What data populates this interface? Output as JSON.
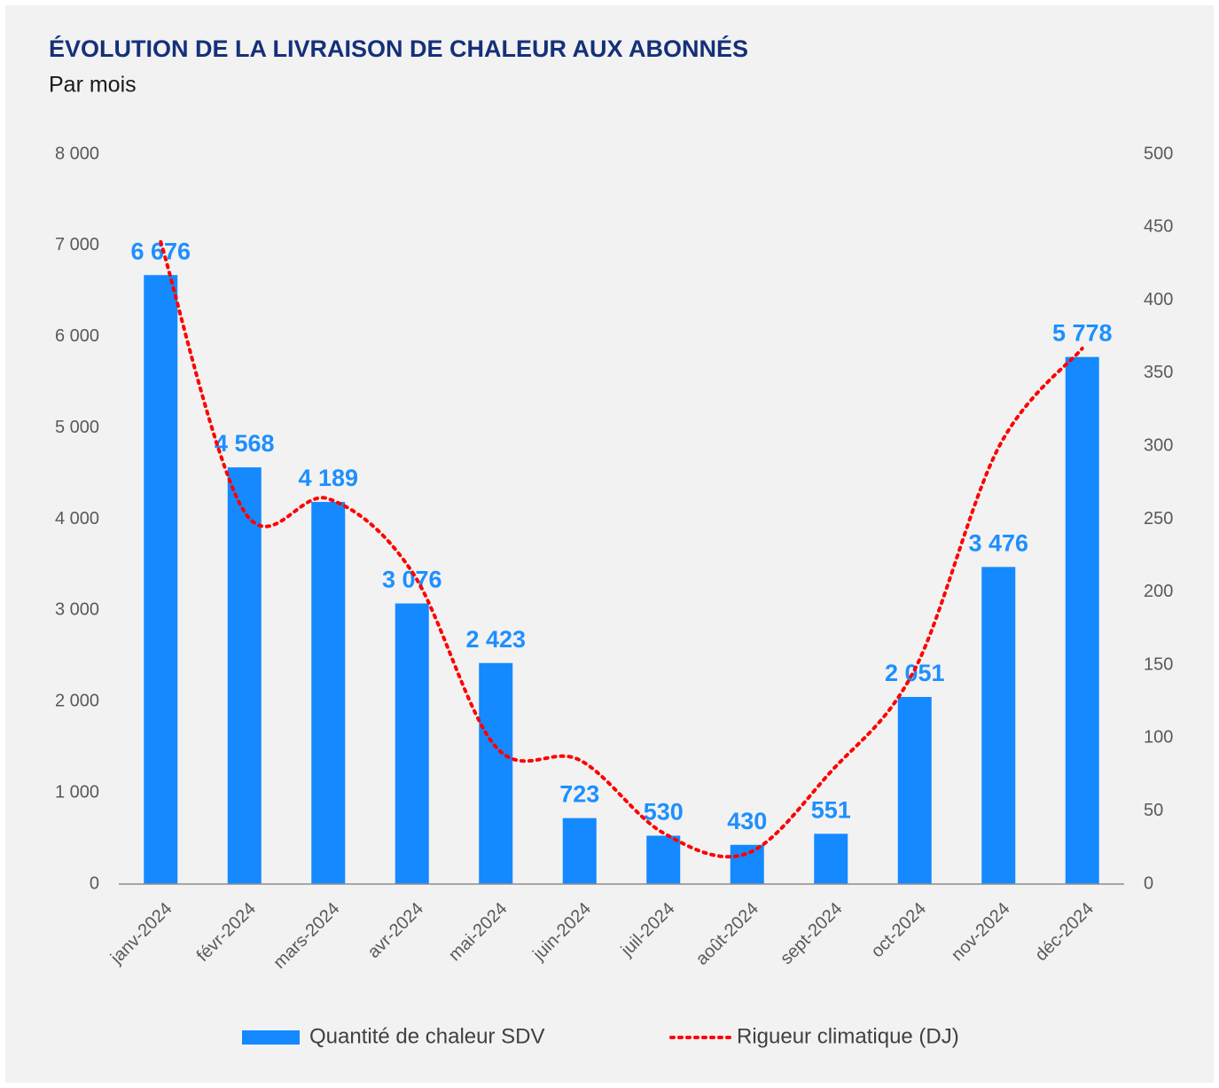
{
  "chart_data": {
    "type": "bar",
    "title": "ÉVOLUTION DE LA LIVRAISON DE CHALEUR AUX ABONNÉS",
    "subtitle": "Par mois",
    "categories": [
      "janv-2024",
      "févr-2024",
      "mars-2024",
      "avr-2024",
      "mai-2024",
      "juin-2024",
      "juil-2024",
      "août-2024",
      "sept-2024",
      "oct-2024",
      "nov-2024",
      "déc-2024"
    ],
    "series": [
      {
        "name": "Quantité de chaleur SDV",
        "type": "bar",
        "color": "#1589ff",
        "values": [
          6676,
          4568,
          4189,
          3076,
          2423,
          723,
          530,
          430,
          551,
          2051,
          3476,
          5778
        ],
        "value_labels": [
          "6 676",
          "4 568",
          "4 189",
          "3 076",
          "2 423",
          "723",
          "530",
          "430",
          "551",
          "2 051",
          "3 476",
          "5 778"
        ]
      },
      {
        "name": "Rigueur climatique (DJ)",
        "type": "line",
        "axis": "y2",
        "color": "#ff0000",
        "style": "dotted",
        "values": [
          440,
          255,
          264,
          214,
          94,
          85,
          35,
          21,
          77,
          147,
          299,
          367
        ]
      }
    ],
    "ylim": [
      0,
      8000
    ],
    "yticks": [
      0,
      {
        "value": 1000,
        "label": "1 000"
      },
      {
        "value": 2000,
        "label": "2 000"
      },
      {
        "value": 3000,
        "label": "3 000"
      },
      {
        "value": 4000,
        "label": "4 000"
      },
      {
        "value": 5000,
        "label": "5 000"
      },
      {
        "value": 6000,
        "label": "6 000"
      },
      {
        "value": 7000,
        "label": "7 000"
      },
      {
        "value": 8000,
        "label": "8 000"
      }
    ],
    "y2lim": [
      0,
      500
    ],
    "y2ticks": [
      0,
      50,
      100,
      150,
      200,
      250,
      300,
      350,
      400,
      450,
      500
    ],
    "grid": false,
    "legend": "bottom"
  }
}
